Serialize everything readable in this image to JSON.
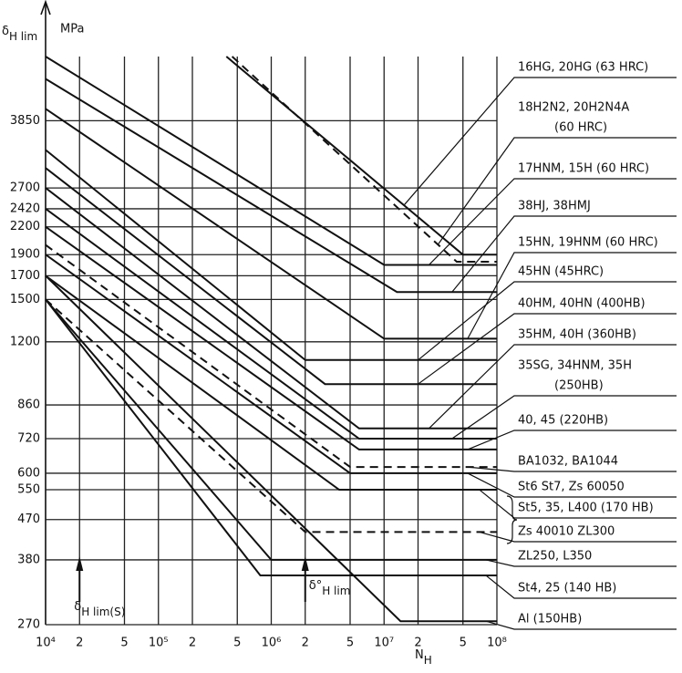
{
  "chart_data": {
    "type": "line",
    "y_label": {
      "symbol": "δ",
      "subscript": "H lim"
    },
    "y_unit": "MPa",
    "x_label": {
      "symbol": "N",
      "subscript": "H"
    },
    "log_x": true,
    "log_y": true,
    "grid": true,
    "xlim": [
      10000,
      100000000
    ],
    "ylim": [
      270,
      5400
    ],
    "xticks": [
      {
        "value": 10000,
        "label": "10⁴"
      },
      {
        "value": 20000,
        "label": "2"
      },
      {
        "value": 50000,
        "label": "5"
      },
      {
        "value": 100000,
        "label": "10⁵"
      },
      {
        "value": 200000,
        "label": "2"
      },
      {
        "value": 500000,
        "label": "5"
      },
      {
        "value": 1000000,
        "label": "10⁶"
      },
      {
        "value": 2000000,
        "label": "2"
      },
      {
        "value": 5000000,
        "label": "5"
      },
      {
        "value": 10000000,
        "label": "10⁷"
      },
      {
        "value": 20000000,
        "label": "2"
      },
      {
        "value": 50000000,
        "label": "5"
      },
      {
        "value": 100000000,
        "label": "10⁸"
      }
    ],
    "yticks": [
      270,
      380,
      470,
      550,
      600,
      720,
      860,
      1200,
      1500,
      1700,
      1900,
      2200,
      2420,
      2700,
      3850
    ],
    "series": [
      {
        "label": [
          "16HG, 20HG (63 HRC)"
        ],
        "color": "#111111",
        "dashed": false,
        "x": [
          400000,
          50000000,
          100000000
        ],
        "values": [
          5400,
          1900,
          1900
        ]
      },
      {
        "label": [
          "18H2N2, 20H2N4A",
          "(60 HRC)"
        ],
        "color": "#111111",
        "dashed": true,
        "x": [
          450000,
          44000000,
          100000000
        ],
        "values": [
          5400,
          1830,
          1830
        ]
      },
      {
        "label": [
          "17HNM, 15H (60 HRC)"
        ],
        "color": "#111111",
        "dashed": false,
        "x": [
          10000,
          10000000,
          100000000
        ],
        "values": [
          5400,
          1800,
          1800
        ]
      },
      {
        "label": [
          "38HJ, 38HMJ"
        ],
        "color": "#111111",
        "dashed": false,
        "x": [
          10000,
          13000000,
          100000000
        ],
        "values": [
          4800,
          1560,
          1560
        ]
      },
      {
        "label": [
          "15HN, 19HNM (60 HRC)"
        ],
        "color": "#111111",
        "dashed": false,
        "x": [
          10000,
          10000000,
          100000000
        ],
        "values": [
          4100,
          1220,
          1220
        ]
      },
      {
        "label": [
          "45HN (45HRC)"
        ],
        "color": "#111111",
        "dashed": false,
        "x": [
          10000,
          2000000,
          100000000
        ],
        "values": [
          3300,
          1090,
          1090
        ]
      },
      {
        "label": [
          "40HM, 40HN (400HB)"
        ],
        "color": "#111111",
        "dashed": false,
        "x": [
          10000,
          3000000,
          100000000
        ],
        "values": [
          3000,
          960,
          960
        ]
      },
      {
        "label": [
          "35HM, 40H (360HB)"
        ],
        "color": "#111111",
        "dashed": false,
        "x": [
          10000,
          6000000,
          100000000
        ],
        "values": [
          2700,
          760,
          760
        ]
      },
      {
        "label": [
          "35SG, 34HNM, 35H",
          "(250HB)"
        ],
        "color": "#111111",
        "dashed": false,
        "x": [
          10000,
          6000000,
          100000000
        ],
        "values": [
          2420,
          720,
          720
        ]
      },
      {
        "label": [
          "40, 45 (220HB)"
        ],
        "color": "#111111",
        "dashed": false,
        "x": [
          10000,
          6000000,
          100000000
        ],
        "values": [
          2200,
          680,
          680
        ]
      },
      {
        "label": [
          "BA1032, BA1044"
        ],
        "color": "#111111",
        "dashed": true,
        "x": [
          10000,
          5000000,
          100000000
        ],
        "values": [
          2000,
          620,
          620
        ]
      },
      {
        "label": [
          "St6 St7, Zs 60050"
        ],
        "color": "#111111",
        "dashed": false,
        "x": [
          10000,
          5000000,
          100000000
        ],
        "values": [
          1900,
          600,
          600
        ]
      },
      {
        "label": [
          "St5, 35, L400 (170 HB)"
        ],
        "color": "#111111",
        "dashed": false,
        "x": [
          10000,
          4000000,
          100000000
        ],
        "values": [
          1700,
          550,
          550
        ]
      },
      {
        "label": [
          "Zs 40010 ZL300"
        ],
        "color": "#111111",
        "dashed": true,
        "x": [
          10000,
          2000000,
          100000000
        ],
        "values": [
          1500,
          440,
          440
        ]
      },
      {
        "label": [
          "ZL250, L350"
        ],
        "color": "#111111",
        "dashed": false,
        "x": [
          10000,
          1000000,
          100000000
        ],
        "values": [
          1500,
          380,
          380
        ]
      },
      {
        "label": [
          "St4, 25 (140 HB)"
        ],
        "color": "#111111",
        "dashed": false,
        "x": [
          10000,
          800000,
          100000000
        ],
        "values": [
          1500,
          350,
          350
        ]
      },
      {
        "label": [
          "Al (150HB)"
        ],
        "color": "#111111",
        "dashed": false,
        "x": [
          10000,
          14000000,
          100000000
        ],
        "values": [
          1700,
          275,
          275
        ]
      }
    ],
    "annotations": [
      {
        "symbol": "δ",
        "subscript": "H lim(S)",
        "x": 20000
      },
      {
        "symbol": "δ°",
        "subscript": "H lim",
        "x": 2000000
      }
    ]
  }
}
